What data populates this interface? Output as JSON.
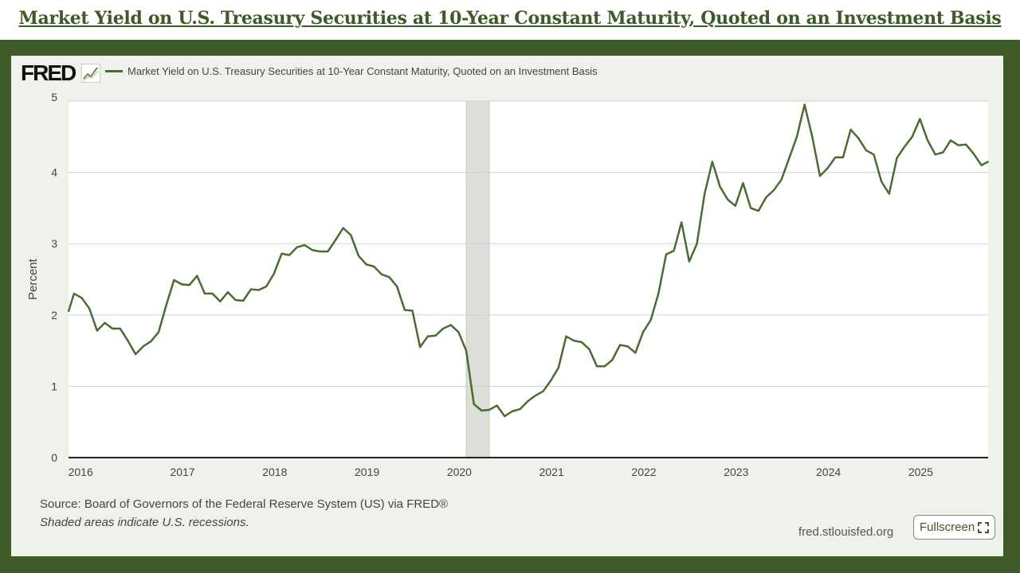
{
  "page_title": "Market Yield on U.S. Treasury Securities at 10-Year Constant Maturity, Quoted on an Investment Basis",
  "logo": "FRED",
  "footer": {
    "source": "Source: Board of Governors of the Federal Reserve System (US) via FRED®",
    "note": "Shaded areas indicate U.S. recessions.",
    "site": "fred.stlouisfed.org",
    "fullscreen_label": "Fullscreen"
  },
  "colors": {
    "line": "#4a6b34",
    "frame": "#3d5a27",
    "panel": "#eff2ea",
    "recession": "#dcdfd8"
  },
  "chart_data": {
    "type": "line",
    "title": "",
    "xlabel": "",
    "ylabel": "Percent",
    "ylim": [
      0,
      5
    ],
    "yticks": [
      "0",
      "1",
      "2",
      "3",
      "4",
      "5"
    ],
    "xticks": [
      "2016",
      "2017",
      "2018",
      "2019",
      "2020",
      "2021",
      "2022",
      "2023",
      "2024",
      "2025"
    ],
    "grid": true,
    "legend": "top-left",
    "recessions": [
      [
        "2020-02",
        "2020-04"
      ]
    ],
    "series": [
      {
        "name": "Market Yield on U.S. Treasury Securities at 10-Year Constant Maturity, Quoted on an Investment Basis",
        "start": "2015-10",
        "frequency": "monthly",
        "values": [
          2.05,
          2.3,
          2.24,
          2.09,
          1.78,
          1.89,
          1.81,
          1.81,
          1.64,
          1.45,
          1.56,
          1.63,
          1.76,
          2.14,
          2.49,
          2.43,
          2.42,
          2.55,
          2.3,
          2.3,
          2.19,
          2.32,
          2.21,
          2.2,
          2.36,
          2.35,
          2.4,
          2.58,
          2.86,
          2.84,
          2.95,
          2.98,
          2.91,
          2.89,
          2.89,
          3.05,
          3.22,
          3.12,
          2.83,
          2.71,
          2.68,
          2.57,
          2.53,
          2.4,
          2.07,
          2.06,
          1.55,
          1.7,
          1.71,
          1.81,
          1.86,
          1.76,
          1.5,
          0.75,
          0.66,
          0.67,
          0.73,
          0.58,
          0.65,
          0.68,
          0.79,
          0.87,
          0.93,
          1.08,
          1.26,
          1.7,
          1.64,
          1.62,
          1.52,
          1.28,
          1.28,
          1.37,
          1.58,
          1.56,
          1.47,
          1.76,
          1.93,
          2.3,
          2.85,
          2.9,
          3.3,
          2.75,
          3.0,
          3.7,
          4.15,
          3.8,
          3.62,
          3.53,
          3.85,
          3.5,
          3.46,
          3.65,
          3.75,
          3.9,
          4.2,
          4.5,
          4.95,
          4.5,
          3.95,
          4.06,
          4.21,
          4.21,
          4.6,
          4.48,
          4.31,
          4.25,
          3.87,
          3.7,
          4.2,
          4.36,
          4.5,
          4.75,
          4.45,
          4.25,
          4.28,
          4.45,
          4.38,
          4.39,
          4.26,
          4.1,
          4.15
        ]
      }
    ]
  }
}
